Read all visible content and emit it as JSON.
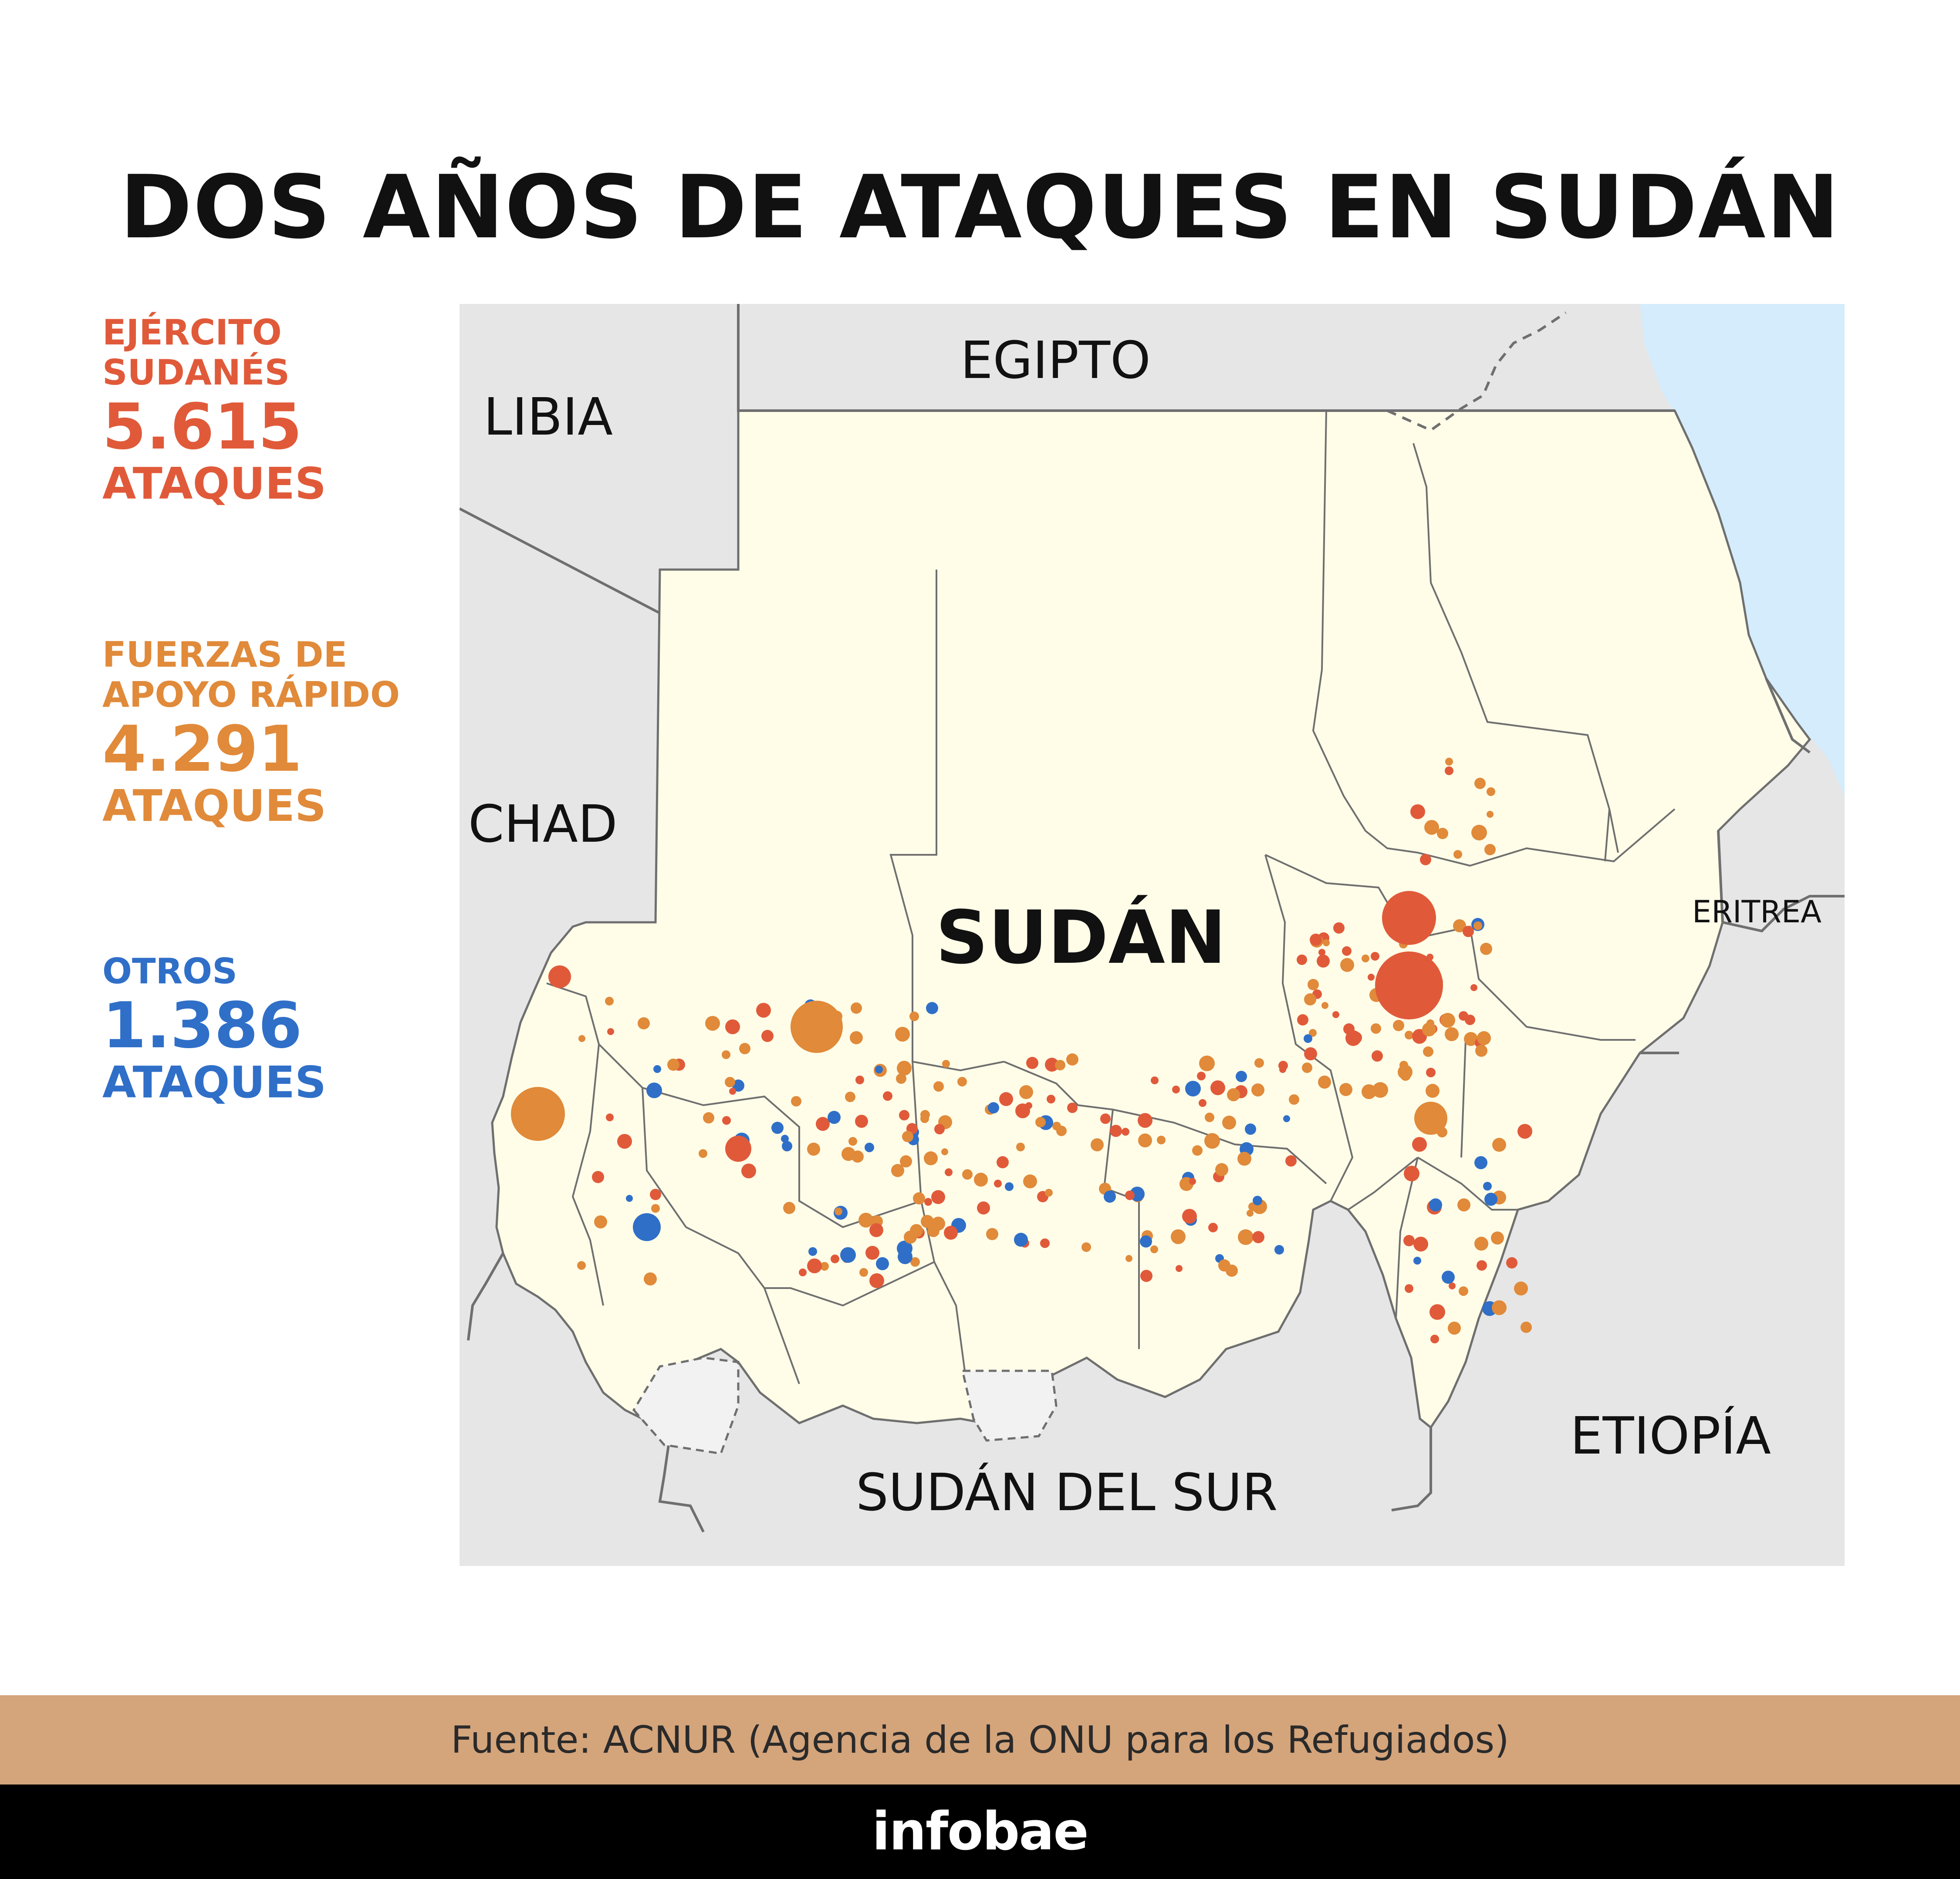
{
  "title": "DOS AÑOS DE ATAQUES EN SUDÁN",
  "legend": [
    {
      "label": "EJÉRCITO SUDANÉS",
      "count": "5.615",
      "unit": "ATAQUES",
      "color": "#e05a3a"
    },
    {
      "label": "FUERZAS DE APOYO RÁPIDO",
      "count": "4.291",
      "unit": "ATAQUES",
      "color": "#e08a3a"
    },
    {
      "label": "OTROS",
      "count": "1.386",
      "unit": "ATAQUES",
      "color": "#2f6fc8"
    }
  ],
  "map": {
    "countries": {
      "libya": "LIBIA",
      "egypt": "EGIPTO",
      "chad": "CHAD",
      "eritrea": "ERITREA",
      "ethiopia": "ETIOPÍA",
      "south_sudan": "SUDÁN DEL SUR"
    },
    "main_label": "SUDÁN",
    "colors": {
      "sudan_fill": "#fffde8",
      "neighbor_fill": "#e6e6e6",
      "sea": "#d4ecfb",
      "border": "#6f6f6f"
    }
  },
  "source": "Fuente: ACNUR (Agencia de la ONU para los Refugiados)",
  "brand": "infobae"
}
